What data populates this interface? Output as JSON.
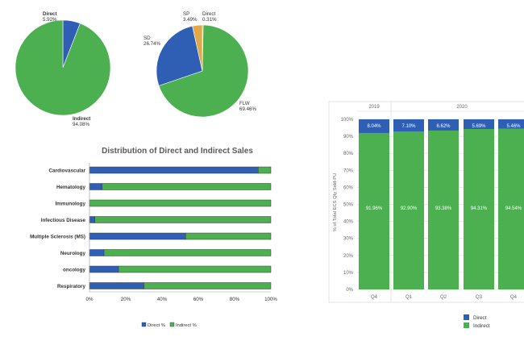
{
  "colors": {
    "direct": "#2e5fb5",
    "indirect": "#4caf50",
    "sp": "#e0a84a",
    "outline": "#3a3a3a",
    "grid": "#d6d6d6",
    "axis_text": "#666666"
  },
  "chart_data": [
    {
      "type": "pie",
      "categories": [
        "Direct",
        "Indirect"
      ],
      "values": [
        5.92,
        94.08
      ],
      "labels": [
        {
          "name": "Direct",
          "pct": "5.92%"
        },
        {
          "name": "Indirect",
          "pct": "94.08%"
        }
      ]
    },
    {
      "type": "pie",
      "categories": [
        "Direct",
        "FLW",
        "SD",
        "SP"
      ],
      "values": [
        0.31,
        69.46,
        26.74,
        3.49
      ],
      "labels": [
        {
          "name": "Direct",
          "pct": "0.31%"
        },
        {
          "name": "FLW",
          "pct": "69.46%"
        },
        {
          "name": "SD",
          "pct": "26.74%"
        },
        {
          "name": "SP",
          "pct": "3.49%"
        }
      ]
    },
    {
      "type": "bar",
      "orientation": "horizontal",
      "stacked": true,
      "title": "Distribution of Direct and Indirect Sales",
      "categories": [
        "Cardiovascular",
        "Hematology",
        "Immunology",
        "Infectious Disease",
        "Multiple Sclerosis (MS)",
        "Neurology",
        "oncology",
        "Respiratory"
      ],
      "series": [
        {
          "name": "Direct %",
          "values": [
            93,
            7,
            0,
            3,
            53,
            8,
            16,
            30
          ]
        },
        {
          "name": "Indirect %",
          "values": [
            7,
            93,
            100,
            97,
            47,
            92,
            84,
            70
          ]
        }
      ],
      "xlim": [
        0,
        100
      ],
      "xticks": [
        "0%",
        "20%",
        "40%",
        "60%",
        "80%",
        "100%"
      ],
      "legend": "bottom",
      "grid": false
    },
    {
      "type": "bar",
      "stacked": true,
      "group_labels": [
        "2019",
        "2020"
      ],
      "categories": [
        "Q4",
        "Q1",
        "Q2",
        "Q3",
        "Q4"
      ],
      "series": [
        {
          "name": "Direct",
          "values": [
            8.04,
            7.1,
            6.62,
            5.69,
            5.46
          ],
          "labels": [
            "8.04%",
            "7.10%",
            "6.62%",
            "5.69%",
            "5.46%"
          ]
        },
        {
          "name": "Indirect",
          "values": [
            91.96,
            92.9,
            93.38,
            94.31,
            94.54
          ],
          "labels": [
            "91.96%",
            "92.90%",
            "93.38%",
            "94.31%",
            "94.54%"
          ]
        }
      ],
      "ylabel": "% of Total ECS Qty Sold-PU",
      "ylim": [
        0,
        100
      ],
      "yticks": [
        "0%",
        "10%",
        "20%",
        "30%",
        "40%",
        "50%",
        "60%",
        "70%",
        "80%",
        "90%",
        "100%"
      ],
      "legend": "bottom-right",
      "grid": true
    }
  ]
}
